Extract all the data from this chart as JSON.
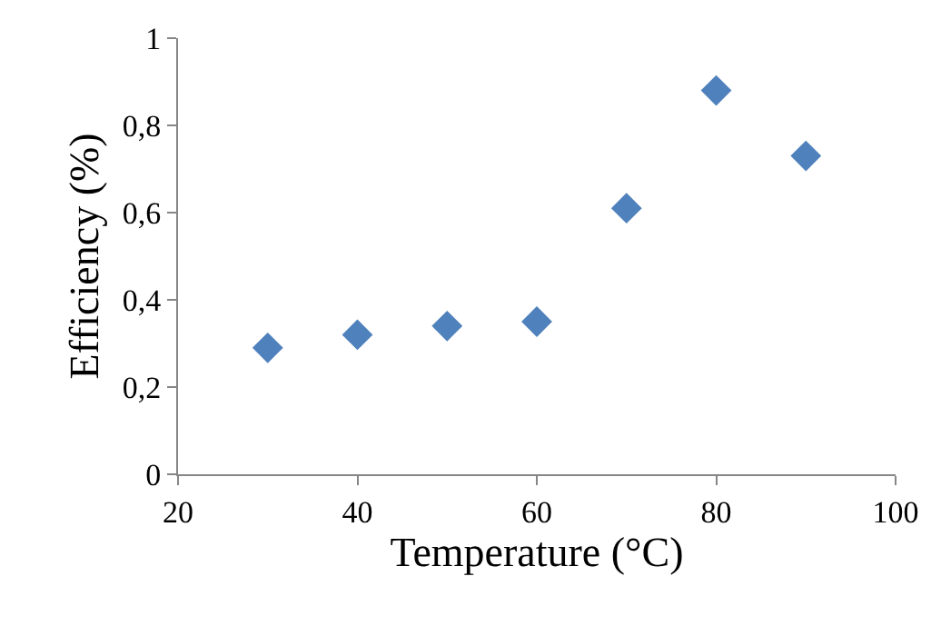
{
  "chart_data": {
    "type": "scatter",
    "x": [
      30,
      40,
      50,
      60,
      70,
      80,
      90
    ],
    "series": [
      {
        "color": "#4f81bd",
        "values": [
          0.29,
          0.32,
          0.34,
          0.35,
          0.61,
          0.88,
          0.73
        ]
      }
    ],
    "xlabel": "Temperature (°C)",
    "ylabel": "Efficiency (%)",
    "xlim": [
      20,
      100
    ],
    "xticks": [
      20,
      40,
      60,
      80,
      100
    ],
    "ylim": [
      0,
      1
    ],
    "yticks": [
      0,
      {
        "value": 0.2,
        "label": "0,2"
      },
      {
        "value": 0.4,
        "label": "0,4"
      },
      {
        "value": 0.6,
        "label": "0,6"
      },
      {
        "value": 0.8,
        "label": "0,8"
      },
      1
    ],
    "marker": "diamond",
    "legend": false
  }
}
